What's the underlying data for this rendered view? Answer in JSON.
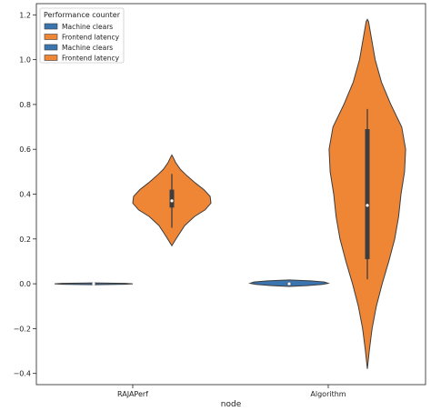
{
  "chart_data": {
    "type": "violin",
    "title": "",
    "xlabel": "node",
    "ylabel": "",
    "categories": [
      "RAJAPerf",
      "Algorithm"
    ],
    "ylim": [
      -0.45,
      1.25
    ],
    "yticks": [
      -0.4,
      -0.2,
      0.0,
      0.2,
      0.4,
      0.6,
      0.8,
      1.0,
      1.2
    ],
    "ytick_labels": [
      "−0.4",
      "−0.2",
      "0.0",
      "0.2",
      "0.4",
      "0.6",
      "0.8",
      "1.0",
      "1.2"
    ],
    "grid": false,
    "legend": {
      "title": "Performance counter",
      "placement": "top-left",
      "entries": [
        {
          "label": "Machine clears",
          "color": "#3b75af"
        },
        {
          "label": "Frontend latency",
          "color": "#ef8636"
        },
        {
          "label": "Machine clears",
          "color": "#3b75af"
        },
        {
          "label": "Frontend latency",
          "color": "#ef8636"
        }
      ]
    },
    "series": [
      {
        "name": "Machine clears",
        "color": "#3b75af",
        "violins": [
          {
            "category": "RAJAPerf",
            "min": -0.003,
            "q1": -0.001,
            "median": 0.0,
            "q3": 0.001,
            "max": 0.003,
            "density": [
              [
                -0.004,
                0.0
              ],
              [
                -0.002,
                0.8
              ],
              [
                0.0,
                1.0
              ],
              [
                0.002,
                0.8
              ],
              [
                0.004,
                0.0
              ]
            ]
          },
          {
            "category": "Algorithm",
            "min": -0.01,
            "q1": -0.003,
            "median": 0.0,
            "q3": 0.003,
            "max": 0.01,
            "density": [
              [
                -0.012,
                0.0
              ],
              [
                -0.008,
                0.45
              ],
              [
                -0.003,
                0.85
              ],
              [
                0.002,
                1.0
              ],
              [
                0.008,
                0.9
              ],
              [
                0.013,
                0.55
              ],
              [
                0.017,
                0.0
              ]
            ]
          }
        ]
      },
      {
        "name": "Frontend latency",
        "color": "#ef8636",
        "violins": [
          {
            "category": "RAJAPerf",
            "min": 0.25,
            "q1": 0.34,
            "median": 0.37,
            "q3": 0.42,
            "max": 0.49,
            "density": [
              [
                0.17,
                0.0
              ],
              [
                0.19,
                0.07
              ],
              [
                0.22,
                0.18
              ],
              [
                0.26,
                0.33
              ],
              [
                0.3,
                0.58
              ],
              [
                0.33,
                0.85
              ],
              [
                0.36,
                1.0
              ],
              [
                0.39,
                0.98
              ],
              [
                0.42,
                0.82
              ],
              [
                0.45,
                0.6
              ],
              [
                0.48,
                0.4
              ],
              [
                0.51,
                0.22
              ],
              [
                0.54,
                0.1
              ],
              [
                0.565,
                0.03
              ],
              [
                0.575,
                0.0
              ]
            ]
          },
          {
            "category": "Algorithm",
            "min": 0.02,
            "q1": 0.11,
            "median": 0.35,
            "q3": 0.69,
            "max": 0.78,
            "density": [
              [
                -0.38,
                0.0
              ],
              [
                -0.3,
                0.05
              ],
              [
                -0.2,
                0.12
              ],
              [
                -0.1,
                0.23
              ],
              [
                0.0,
                0.38
              ],
              [
                0.1,
                0.55
              ],
              [
                0.2,
                0.7
              ],
              [
                0.3,
                0.8
              ],
              [
                0.4,
                0.86
              ],
              [
                0.5,
                0.95
              ],
              [
                0.6,
                0.98
              ],
              [
                0.7,
                0.88
              ],
              [
                0.8,
                0.6
              ],
              [
                0.9,
                0.36
              ],
              [
                1.0,
                0.2
              ],
              [
                1.1,
                0.1
              ],
              [
                1.17,
                0.03
              ],
              [
                1.18,
                0.0
              ]
            ]
          }
        ]
      }
    ]
  }
}
